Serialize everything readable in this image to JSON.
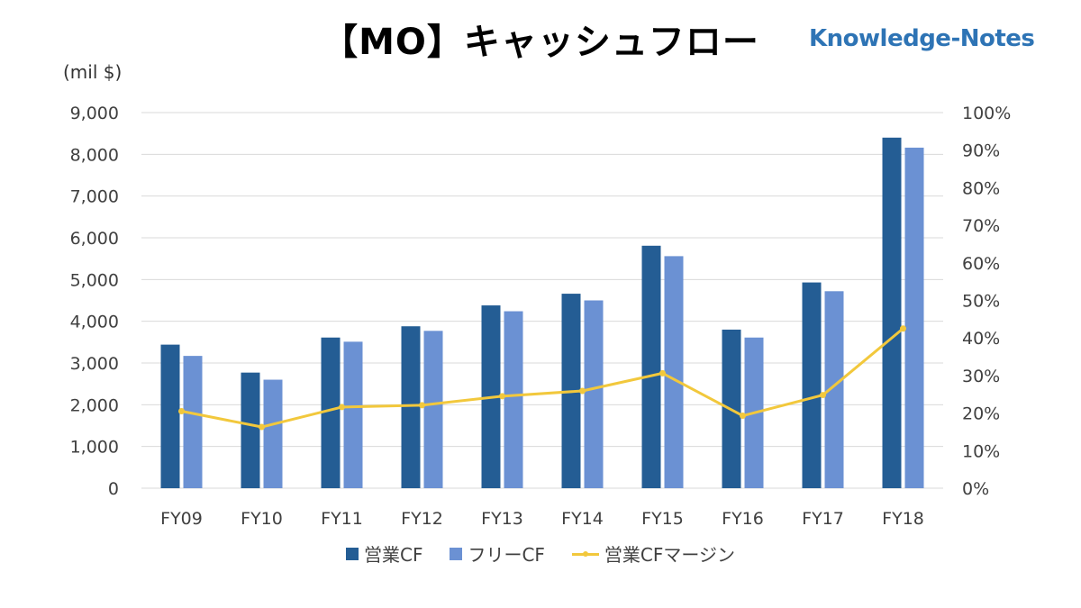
{
  "title": "【MO】キャッシュフロー",
  "brand": "Knowledge-Notes",
  "unit_label": "(mil $)",
  "colors": {
    "operating_cf": "#245D94",
    "free_cf": "#6B91D3",
    "margin": "#F2C83C",
    "grid": "#D9D9D9"
  },
  "chart_data": {
    "type": "bar",
    "categories": [
      "FY09",
      "FY10",
      "FY11",
      "FY12",
      "FY13",
      "FY14",
      "FY15",
      "FY16",
      "FY17",
      "FY18"
    ],
    "series": [
      {
        "name": "営業CF",
        "type": "bar",
        "axis": "left",
        "values": [
          3440,
          2770,
          3610,
          3880,
          4380,
          4660,
          5810,
          3800,
          4930,
          8400
        ]
      },
      {
        "name": "フリーCF",
        "type": "bar",
        "axis": "left",
        "values": [
          3170,
          2600,
          3510,
          3770,
          4240,
          4500,
          5560,
          3610,
          4720,
          8160
        ]
      },
      {
        "name": "営業CFマージン",
        "type": "line",
        "axis": "right",
        "values": [
          0.205,
          0.163,
          0.216,
          0.221,
          0.245,
          0.259,
          0.306,
          0.193,
          0.248,
          0.425
        ]
      }
    ],
    "y_left": {
      "min": 0,
      "max": 9000,
      "step": 1000,
      "tick_labels": [
        "0",
        "1,000",
        "2,000",
        "3,000",
        "4,000",
        "5,000",
        "6,000",
        "7,000",
        "8,000",
        "9,000"
      ]
    },
    "y_right": {
      "min": 0,
      "max": 1.0,
      "step": 0.1,
      "tick_labels": [
        "0%",
        "10%",
        "20%",
        "30%",
        "40%",
        "50%",
        "60%",
        "70%",
        "80%",
        "90%",
        "100%"
      ]
    },
    "grid": true,
    "legend_position": "bottom"
  }
}
